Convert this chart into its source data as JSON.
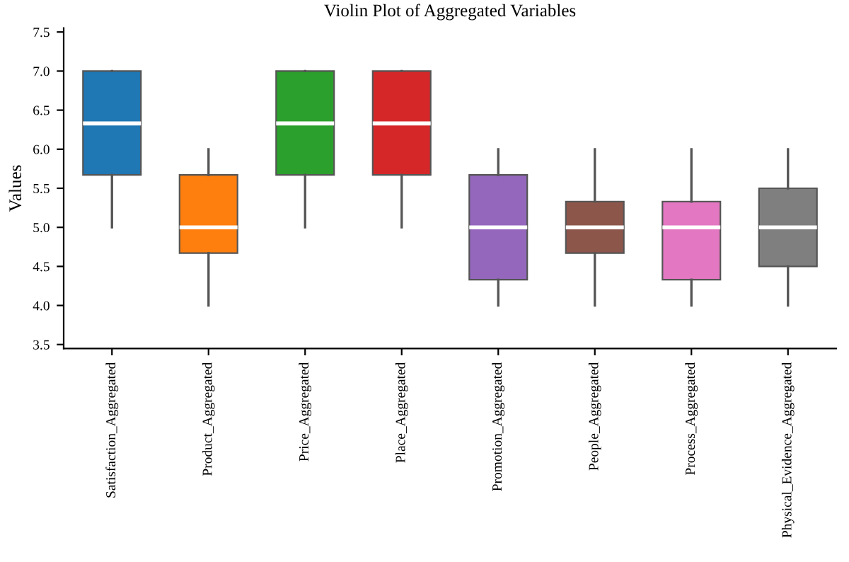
{
  "chart_data": {
    "type": "box",
    "title": "Violin Plot of Aggregated Variables",
    "ylabel": "Values",
    "categories": [
      "Satisfaction_Aggregated",
      "Product_Aggregated",
      "Price_Aggregated",
      "Place_Aggregated",
      "Promotion_Aggregated",
      "People_Aggregated",
      "Process_Aggregated",
      "Physical_Evidence_Aggregated"
    ],
    "colors": [
      "#1f77b4",
      "#ff7f0e",
      "#2ca02c",
      "#d62728",
      "#9467bd",
      "#8c564b",
      "#e377c2",
      "#7f7f7f"
    ],
    "boxes": [
      {
        "low": 5.0,
        "q1": 5.67,
        "median": 6.33,
        "q3": 7.0,
        "high": 7.0
      },
      {
        "low": 4.0,
        "q1": 4.67,
        "median": 5.0,
        "q3": 5.67,
        "high": 6.0
      },
      {
        "low": 5.0,
        "q1": 5.67,
        "median": 6.33,
        "q3": 7.0,
        "high": 7.0
      },
      {
        "low": 5.0,
        "q1": 5.67,
        "median": 6.33,
        "q3": 7.0,
        "high": 7.0
      },
      {
        "low": 4.0,
        "q1": 4.33,
        "median": 5.0,
        "q3": 5.67,
        "high": 6.0
      },
      {
        "low": 4.0,
        "q1": 4.67,
        "median": 5.0,
        "q3": 5.33,
        "high": 6.0
      },
      {
        "low": 4.0,
        "q1": 4.33,
        "median": 5.0,
        "q3": 5.33,
        "high": 6.0
      },
      {
        "low": 4.0,
        "q1": 4.5,
        "median": 5.0,
        "q3": 5.5,
        "high": 6.0
      }
    ],
    "ylim": [
      3.45,
      7.55
    ],
    "yticks": [
      3.5,
      {
        "value": 4,
        "label": "4.0"
      },
      4.5,
      {
        "value": 5,
        "label": "5.0"
      },
      5.5,
      {
        "value": 6,
        "label": "6.0"
      },
      6.5,
      {
        "value": 7,
        "label": "7.0"
      },
      7.5
    ],
    "grid": false,
    "legend": false
  }
}
